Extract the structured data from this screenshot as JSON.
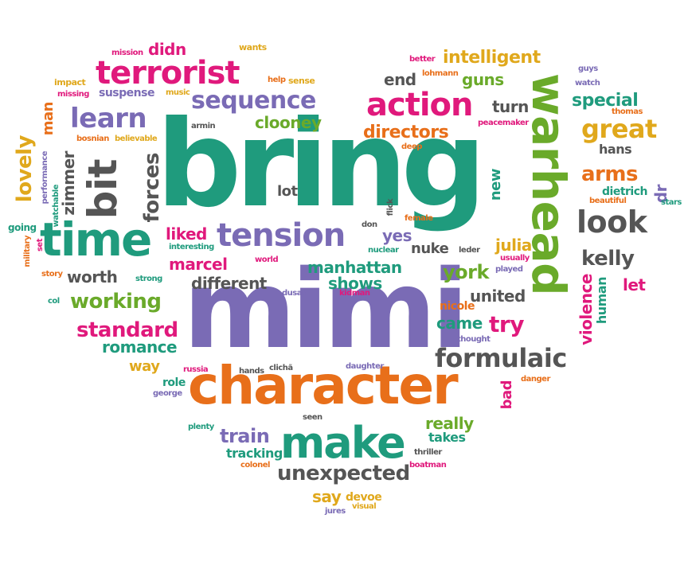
{
  "colors": {
    "teal": "#1f9b7d",
    "pink": "#e0197c",
    "purple": "#7a6bb5",
    "orange": "#e86f1a",
    "green": "#6aaa2a",
    "gold": "#e0a81c",
    "grey": "#555555"
  },
  "words": {
    "bring": "bring",
    "mimi": "mimi",
    "character": "character",
    "warhead": "warhead",
    "make": "make",
    "time": "time",
    "bit": "bit",
    "tension": "tension",
    "terrorist": "terrorist",
    "action": "action",
    "learn": "learn",
    "sequence": "sequence",
    "look": "look",
    "formulaic": "formulaic",
    "great": "great",
    "intelligent": "intelligent",
    "arms": "arms",
    "kelly": "kelly",
    "working": "working",
    "standard": "standard",
    "unexpected": "unexpected",
    "train": "train",
    "forces": "forces",
    "lovely": "lovely",
    "manhattan": "manhattan",
    "romance": "romance",
    "violence": "violence",
    "clooney": "clooney",
    "special": "special",
    "directors": "directors",
    "zimmer": "zimmer",
    "marcel": "marcel",
    "different": "different",
    "shows": "shows",
    "york": "york",
    "try": "try",
    "came": "came",
    "worth": "worth",
    "liked": "liked",
    "yes": "yes",
    "nuke": "nuke",
    "julia": "julia",
    "united": "united",
    "really": "really",
    "takes": "takes",
    "tracking": "tracking",
    "say": "say",
    "devoe": "devoe",
    "dietrich": "dietrich",
    "hans": "hans",
    "human": "human",
    "let": "let",
    "dr": "dr",
    "guns": "guns",
    "end": "end",
    "turn": "turn",
    "suspense": "suspense",
    "man": "man",
    "didn": "didn",
    "new": "new",
    "lot": "lot",
    "way": "way",
    "role": "role",
    "bad": "bad",
    "nicole": "nicole",
    "mission": "mission",
    "wants": "wants",
    "impact": "impact",
    "missing": "missing",
    "music": "music",
    "help": "help",
    "sense": "sense",
    "better": "better",
    "lohmann": "lohmann",
    "guys": "guys",
    "watch": "watch",
    "thomas": "thomas",
    "peacemaker": "peacemaker",
    "armin": "armin",
    "deep": "deep",
    "bosnian": "bosnian",
    "believable": "believable",
    "performance": "performance",
    "watchable": "watchable",
    "going": "going",
    "military": "military",
    "set": "set",
    "story": "story",
    "col": "col",
    "interesting": "interesting",
    "strong": "strong",
    "world": "world",
    "don": "don",
    "flick": "flick",
    "female": "female",
    "nuclear": "nuclear",
    "leder": "leder",
    "usually": "usually",
    "played": "played",
    "dusan": "dusan",
    "kidman": "kidman",
    "thought": "thought",
    "beautiful": "beautiful",
    "stars": "stars",
    "russia": "russia",
    "hands": "hands",
    "cliche": "clichã",
    "daughter": "daughter",
    "danger": "danger",
    "george": "george",
    "plenty": "plenty",
    "seen": "seen",
    "thriller": "thriller",
    "colonel": "colonel",
    "boatman": "boatman",
    "visual": "visual",
    "jures": "jures"
  }
}
